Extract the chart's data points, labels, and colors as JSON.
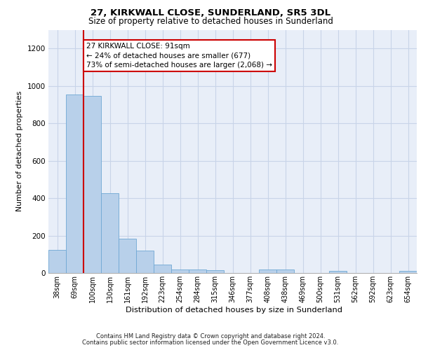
{
  "title1": "27, KIRKWALL CLOSE, SUNDERLAND, SR5 3DL",
  "title2": "Size of property relative to detached houses in Sunderland",
  "xlabel": "Distribution of detached houses by size in Sunderland",
  "ylabel": "Number of detached properties",
  "categories": [
    "38sqm",
    "69sqm",
    "100sqm",
    "130sqm",
    "161sqm",
    "192sqm",
    "223sqm",
    "254sqm",
    "284sqm",
    "315sqm",
    "346sqm",
    "377sqm",
    "408sqm",
    "438sqm",
    "469sqm",
    "500sqm",
    "531sqm",
    "562sqm",
    "592sqm",
    "623sqm",
    "654sqm"
  ],
  "values": [
    125,
    955,
    945,
    425,
    183,
    118,
    45,
    20,
    20,
    0,
    0,
    0,
    0,
    0,
    0,
    0,
    0,
    0,
    0,
    0,
    0
  ],
  "values_actual": [
    125,
    955,
    945,
    425,
    183,
    118,
    45,
    20,
    20,
    15,
    0,
    0,
    18,
    18,
    0,
    0,
    10,
    0,
    0,
    0,
    10
  ],
  "bar_color": "#b8d0ea",
  "bar_edge_color": "#6fa8d4",
  "vline_color": "#cc0000",
  "annotation_text": "27 KIRKWALL CLOSE: 91sqm\n← 24% of detached houses are smaller (677)\n73% of semi-detached houses are larger (2,068) →",
  "annotation_box_edge": "#cc0000",
  "ylim": [
    0,
    1300
  ],
  "yticks": [
    0,
    200,
    400,
    600,
    800,
    1000,
    1200
  ],
  "grid_color": "#c8d4e8",
  "bg_color": "#e8eef8",
  "footer1": "Contains HM Land Registry data © Crown copyright and database right 2024.",
  "footer2": "Contains public sector information licensed under the Open Government Licence v3.0."
}
